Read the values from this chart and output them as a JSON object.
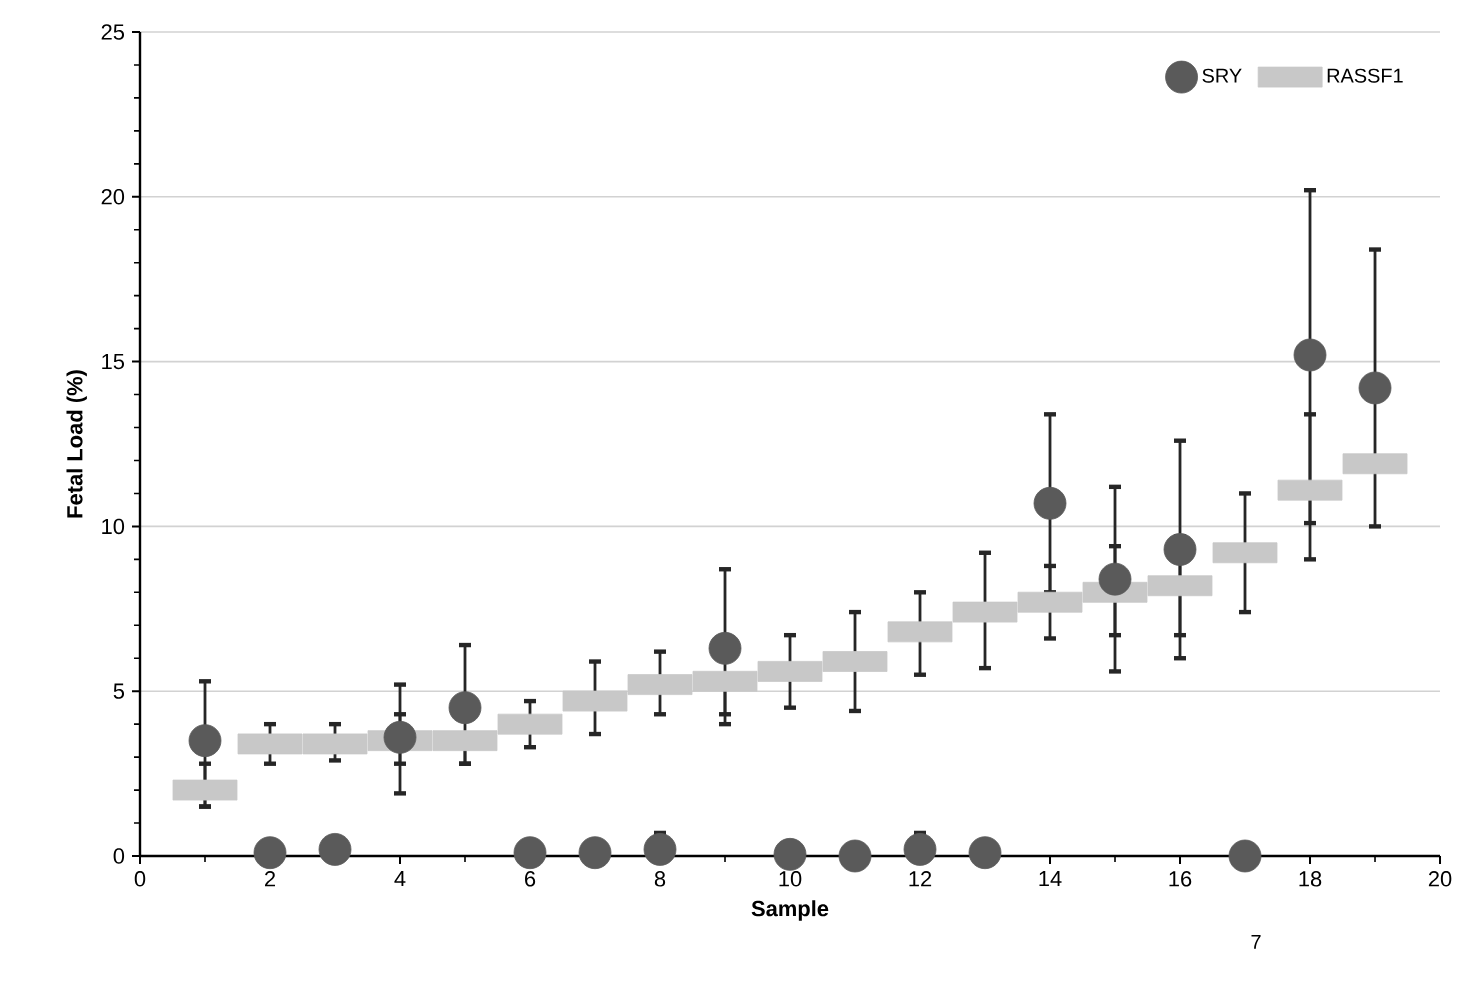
{
  "chart_data": {
    "type": "scatter",
    "xlabel": "Sample",
    "ylabel": "Fetal Load (%)",
    "xlim": [
      0,
      20
    ],
    "xticks": [
      0,
      2,
      4,
      6,
      8,
      10,
      12,
      14,
      16,
      18,
      20
    ],
    "ylim": [
      0,
      25
    ],
    "yticks": [
      0,
      5,
      10,
      15,
      20,
      25
    ],
    "grid": "y",
    "legend": "top right",
    "annotations": [
      "7"
    ],
    "x": [
      1,
      2,
      3,
      4,
      5,
      6,
      7,
      8,
      9,
      10,
      11,
      12,
      13,
      14,
      15,
      16,
      17,
      18,
      19
    ],
    "series": [
      {
        "name": "SRY",
        "color": "#5a5a5a",
        "marker": "circle",
        "values": [
          3.5,
          0.1,
          0.2,
          3.6,
          4.5,
          0.1,
          0.1,
          0.2,
          6.3,
          0.05,
          0,
          0.2,
          0.1,
          10.7,
          8.4,
          9.3,
          0,
          15.2,
          14.2
        ],
        "errors": [
          [
            1.5,
            5.3
          ],
          null,
          null,
          [
            1.9,
            5.2
          ],
          [
            2.8,
            6.4
          ],
          null,
          null,
          [
            0.2,
            0.7
          ],
          [
            4.3,
            8.7
          ],
          null,
          null,
          [
            0.2,
            0.7
          ],
          null,
          [
            8.0,
            13.4
          ],
          [
            5.6,
            11.2
          ],
          [
            6.0,
            12.6
          ],
          null,
          [
            10.1,
            20.2
          ],
          [
            10.0,
            18.4
          ]
        ]
      },
      {
        "name": "RASSF1",
        "color": "#c8c8c8",
        "marker": "square",
        "values": [
          2.0,
          3.4,
          3.4,
          3.5,
          3.5,
          4.0,
          4.7,
          5.2,
          5.3,
          5.6,
          5.9,
          6.8,
          7.4,
          7.7,
          8.0,
          8.2,
          9.2,
          11.1,
          11.9
        ],
        "errors": [
          [
            1.5,
            2.8
          ],
          [
            2.8,
            4.0
          ],
          [
            2.9,
            4.0
          ],
          [
            2.8,
            4.3
          ],
          [
            2.8,
            3.5
          ],
          [
            3.3,
            4.7
          ],
          [
            3.7,
            5.9
          ],
          [
            4.3,
            6.2
          ],
          [
            4.0,
            5.3
          ],
          [
            4.5,
            6.7
          ],
          [
            4.4,
            7.4
          ],
          [
            5.5,
            8.0
          ],
          [
            5.7,
            9.2
          ],
          [
            6.6,
            8.8
          ],
          [
            6.7,
            9.4
          ],
          [
            6.7,
            9.7
          ],
          [
            7.4,
            11.0
          ],
          [
            9.0,
            13.4
          ],
          null
        ]
      }
    ]
  }
}
